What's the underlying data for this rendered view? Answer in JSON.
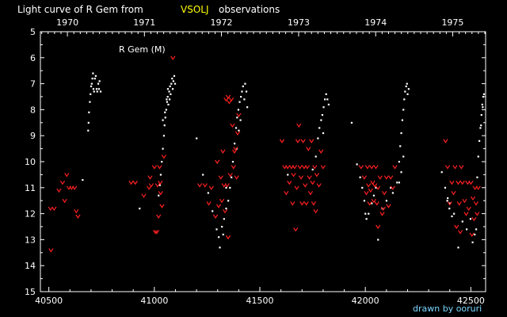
{
  "chart_data": {
    "type": "scatter",
    "title_prefix": "Light curve of R Gem from",
    "title_source": "VSOLJ",
    "title_suffix": "observations",
    "star_label": "R Gem (M)",
    "credit": "drawn by ooruri",
    "x_ticks": [
      40500,
      41000,
      41500,
      42000,
      42500
    ],
    "x_tick_labels": [
      "40500",
      "41000",
      "41500",
      "42000",
      "42500"
    ],
    "year_ticks": [
      {
        "label": "1970",
        "x": 40588
      },
      {
        "label": "1971",
        "x": 40953
      },
      {
        "label": "1972",
        "x": 41318
      },
      {
        "label": "1973",
        "x": 41684
      },
      {
        "label": "1974",
        "x": 42049
      },
      {
        "label": "1975",
        "x": 42414
      }
    ],
    "y_ticks": [
      5,
      6,
      7,
      8,
      9,
      10,
      11,
      12,
      13,
      14,
      15
    ],
    "xlim": [
      40460,
      42570
    ],
    "ylim": [
      5,
      15
    ],
    "y_inverted": true,
    "colors": {
      "observation": "#ffffff",
      "fainter_than": "#ff2020",
      "title_accent": "#ffff00",
      "credit": "#7ad7ff",
      "axis": "#ffffff"
    },
    "series": [
      {
        "kind": "observation",
        "points": [
          [
            40660,
            10.7
          ],
          [
            40686,
            8.8
          ],
          [
            40688,
            8.5
          ],
          [
            40690,
            8.1
          ],
          [
            40694,
            7.7
          ],
          [
            40697,
            7.4
          ],
          [
            40700,
            7.1
          ],
          [
            40703,
            7.0
          ],
          [
            40706,
            6.8
          ],
          [
            40709,
            6.6
          ],
          [
            40711,
            7.2
          ],
          [
            40714,
            7.3
          ],
          [
            40718,
            6.8
          ],
          [
            40722,
            6.7
          ],
          [
            40726,
            7.2
          ],
          [
            40729,
            7.3
          ],
          [
            40734,
            7.0
          ],
          [
            40737,
            7.2
          ],
          [
            40740,
            6.9
          ],
          [
            40745,
            7.3
          ],
          [
            40930,
            11.8
          ],
          [
            41020,
            11.3
          ],
          [
            41026,
            10.9
          ],
          [
            41030,
            10.5
          ],
          [
            41035,
            10.0
          ],
          [
            41040,
            9.5
          ],
          [
            41045,
            9.0
          ],
          [
            41048,
            8.6
          ],
          [
            41052,
            8.3
          ],
          [
            41056,
            8.0
          ],
          [
            41060,
            7.7
          ],
          [
            41063,
            7.5
          ],
          [
            41066,
            7.8
          ],
          [
            41070,
            7.3
          ],
          [
            41074,
            7.1
          ],
          [
            41077,
            7.4
          ],
          [
            41080,
            7.0
          ],
          [
            41084,
            6.8
          ],
          [
            41087,
            7.2
          ],
          [
            41090,
            6.9
          ],
          [
            41094,
            6.7
          ],
          [
            41098,
            7.0
          ],
          [
            41040,
            8.4
          ],
          [
            41050,
            8.1
          ],
          [
            41058,
            7.6
          ],
          [
            41064,
            7.2
          ],
          [
            41072,
            7.6
          ],
          [
            41200,
            9.1
          ],
          [
            41230,
            10.5
          ],
          [
            41255,
            11.2
          ],
          [
            41275,
            11.9
          ],
          [
            41295,
            12.6
          ],
          [
            41305,
            12.9
          ],
          [
            41310,
            13.3
          ],
          [
            41320,
            12.5
          ],
          [
            41330,
            12.2
          ],
          [
            41340,
            11.8
          ],
          [
            41350,
            11.5
          ],
          [
            41358,
            11.0
          ],
          [
            41365,
            10.6
          ],
          [
            41372,
            10.0
          ],
          [
            41380,
            9.3
          ],
          [
            41387,
            8.7
          ],
          [
            41392,
            8.3
          ],
          [
            41398,
            8.0
          ],
          [
            41404,
            7.7
          ],
          [
            41410,
            7.5
          ],
          [
            41415,
            7.3
          ],
          [
            41420,
            7.1
          ],
          [
            41426,
            7.6
          ],
          [
            41430,
            7.0
          ],
          [
            41436,
            7.3
          ],
          [
            41390,
            9.5
          ],
          [
            41400,
            8.8
          ],
          [
            41408,
            8.4
          ],
          [
            41440,
            7.9
          ],
          [
            41326,
            12.8
          ],
          [
            41340,
            11.0
          ],
          [
            41632,
            10.5
          ],
          [
            41750,
            10.3
          ],
          [
            41765,
            9.8
          ],
          [
            41775,
            9.1
          ],
          [
            41782,
            8.7
          ],
          [
            41790,
            8.4
          ],
          [
            41796,
            8.2
          ],
          [
            41802,
            7.9
          ],
          [
            41808,
            7.6
          ],
          [
            41814,
            7.4
          ],
          [
            41820,
            7.6
          ],
          [
            41826,
            7.8
          ],
          [
            41800,
            8.9
          ],
          [
            41935,
            8.5
          ],
          [
            41960,
            10.1
          ],
          [
            41975,
            10.6
          ],
          [
            41985,
            11.0
          ],
          [
            41995,
            11.5
          ],
          [
            42000,
            12.0
          ],
          [
            42005,
            12.2
          ],
          [
            42015,
            12.0
          ],
          [
            42030,
            11.6
          ],
          [
            42040,
            11.3
          ],
          [
            42050,
            11.0
          ],
          [
            42060,
            13.0
          ],
          [
            42080,
            11.8
          ],
          [
            42100,
            11.5
          ],
          [
            42120,
            11.0
          ],
          [
            42130,
            11.2
          ],
          [
            42150,
            10.8
          ],
          [
            42160,
            10.0
          ],
          [
            42165,
            9.4
          ],
          [
            42170,
            8.9
          ],
          [
            42175,
            8.4
          ],
          [
            42180,
            8.0
          ],
          [
            42184,
            7.6
          ],
          [
            42188,
            7.3
          ],
          [
            42193,
            7.1
          ],
          [
            42197,
            7.0
          ],
          [
            42200,
            7.4
          ],
          [
            42205,
            7.2
          ],
          [
            42170,
            10.4
          ],
          [
            42160,
            10.8
          ],
          [
            42180,
            9.8
          ],
          [
            42362,
            10.4
          ],
          [
            42378,
            11.0
          ],
          [
            42388,
            11.5
          ],
          [
            42398,
            11.8
          ],
          [
            42410,
            12.1
          ],
          [
            42420,
            12.0
          ],
          [
            42440,
            13.3
          ],
          [
            42460,
            12.3
          ],
          [
            42480,
            12.6
          ],
          [
            42498,
            12.2
          ],
          [
            42508,
            13.1
          ],
          [
            42518,
            12.8
          ],
          [
            42525,
            12.6
          ],
          [
            42530,
            10.6
          ],
          [
            42535,
            9.8
          ],
          [
            42540,
            9.2
          ],
          [
            42545,
            8.7
          ],
          [
            42550,
            8.2
          ],
          [
            42554,
            7.8
          ],
          [
            42558,
            7.5
          ],
          [
            42562,
            7.4
          ],
          [
            42548,
            8.6
          ],
          [
            42556,
            7.9
          ],
          [
            42390,
            11.4
          ],
          [
            42400,
            11.6
          ]
        ]
      },
      {
        "kind": "fainter_than",
        "points": [
          [
            40508,
            11.8
          ],
          [
            40525,
            11.8
          ],
          [
            40548,
            11.1
          ],
          [
            40565,
            10.8
          ],
          [
            40575,
            11.5
          ],
          [
            40585,
            10.5
          ],
          [
            40595,
            11.0
          ],
          [
            40608,
            11.0
          ],
          [
            40622,
            11.0
          ],
          [
            40630,
            11.9
          ],
          [
            40638,
            12.1
          ],
          [
            40510,
            13.4
          ],
          [
            40890,
            10.8
          ],
          [
            40910,
            10.8
          ],
          [
            40950,
            11.3
          ],
          [
            40975,
            11.0
          ],
          [
            40980,
            10.6
          ],
          [
            40985,
            10.9
          ],
          [
            41000,
            10.2
          ],
          [
            41005,
            12.7
          ],
          [
            41012,
            12.7
          ],
          [
            41015,
            10.9
          ],
          [
            41020,
            12.1
          ],
          [
            41025,
            10.2
          ],
          [
            41030,
            11.2
          ],
          [
            41036,
            11.7
          ],
          [
            41088,
            6.0
          ],
          [
            41028,
            10.8
          ],
          [
            41045,
            9.8
          ],
          [
            41215,
            10.9
          ],
          [
            41240,
            10.9
          ],
          [
            41258,
            11.6
          ],
          [
            41270,
            11.0
          ],
          [
            41290,
            12.1
          ],
          [
            41298,
            10.0
          ],
          [
            41305,
            11.7
          ],
          [
            41315,
            10.6
          ],
          [
            41320,
            11.5
          ],
          [
            41325,
            9.6
          ],
          [
            41330,
            10.9
          ],
          [
            41335,
            11.9
          ],
          [
            41340,
            7.6
          ],
          [
            41345,
            10.9
          ],
          [
            41350,
            7.5
          ],
          [
            41355,
            7.7
          ],
          [
            41360,
            10.5
          ],
          [
            41365,
            7.6
          ],
          [
            41370,
            8.6
          ],
          [
            41375,
            10.2
          ],
          [
            41380,
            9.6
          ],
          [
            41385,
            9.5
          ],
          [
            41390,
            10.6
          ],
          [
            41395,
            8.9
          ],
          [
            41400,
            8.2
          ],
          [
            41350,
            12.9
          ],
          [
            41605,
            9.2
          ],
          [
            41618,
            10.2
          ],
          [
            41625,
            11.2
          ],
          [
            41632,
            10.2
          ],
          [
            41640,
            10.8
          ],
          [
            41650,
            10.2
          ],
          [
            41655,
            11.6
          ],
          [
            41660,
            10.5
          ],
          [
            41665,
            10.2
          ],
          [
            41670,
            12.6
          ],
          [
            41675,
            11.0
          ],
          [
            41680,
            9.2
          ],
          [
            41685,
            8.6
          ],
          [
            41690,
            10.2
          ],
          [
            41695,
            10.6
          ],
          [
            41700,
            11.6
          ],
          [
            41705,
            9.2
          ],
          [
            41710,
            10.2
          ],
          [
            41715,
            10.9
          ],
          [
            41720,
            11.6
          ],
          [
            41725,
            10.2
          ],
          [
            41730,
            9.5
          ],
          [
            41735,
            10.6
          ],
          [
            41740,
            11.2
          ],
          [
            41745,
            9.2
          ],
          [
            41750,
            10.8
          ],
          [
            41755,
            11.6
          ],
          [
            41760,
            10.2
          ],
          [
            41765,
            11.9
          ],
          [
            41770,
            10.5
          ],
          [
            41780,
            10.9
          ],
          [
            41790,
            9.6
          ],
          [
            41800,
            10.2
          ],
          [
            41980,
            10.2
          ],
          [
            41995,
            10.6
          ],
          [
            42005,
            11.2
          ],
          [
            42010,
            10.2
          ],
          [
            42015,
            10.9
          ],
          [
            42020,
            11.6
          ],
          [
            42025,
            11.1
          ],
          [
            42030,
            10.2
          ],
          [
            42035,
            10.8
          ],
          [
            42040,
            11.5
          ],
          [
            42045,
            10.9
          ],
          [
            42050,
            10.2
          ],
          [
            42055,
            11.6
          ],
          [
            42060,
            11.0
          ],
          [
            42070,
            10.6
          ],
          [
            42080,
            12.0
          ],
          [
            42090,
            11.2
          ],
          [
            42100,
            10.6
          ],
          [
            42110,
            11.7
          ],
          [
            42120,
            10.6
          ],
          [
            42130,
            11.0
          ],
          [
            42140,
            10.2
          ],
          [
            42060,
            12.5
          ],
          [
            42085,
            11.8
          ],
          [
            42380,
            9.2
          ],
          [
            42390,
            10.2
          ],
          [
            42400,
            11.6
          ],
          [
            42410,
            10.8
          ],
          [
            42418,
            11.2
          ],
          [
            42425,
            10.2
          ],
          [
            42432,
            12.5
          ],
          [
            42440,
            10.8
          ],
          [
            42445,
            11.6
          ],
          [
            42450,
            12.7
          ],
          [
            42455,
            10.2
          ],
          [
            42460,
            10.8
          ],
          [
            42470,
            11.5
          ],
          [
            42478,
            12.0
          ],
          [
            42485,
            10.8
          ],
          [
            42490,
            11.8
          ],
          [
            42500,
            10.8
          ],
          [
            42505,
            12.8
          ],
          [
            42510,
            11.4
          ],
          [
            42515,
            12.2
          ],
          [
            42520,
            11.0
          ],
          [
            42525,
            11.6
          ],
          [
            42530,
            12.0
          ],
          [
            42535,
            11.0
          ]
        ]
      }
    ]
  }
}
